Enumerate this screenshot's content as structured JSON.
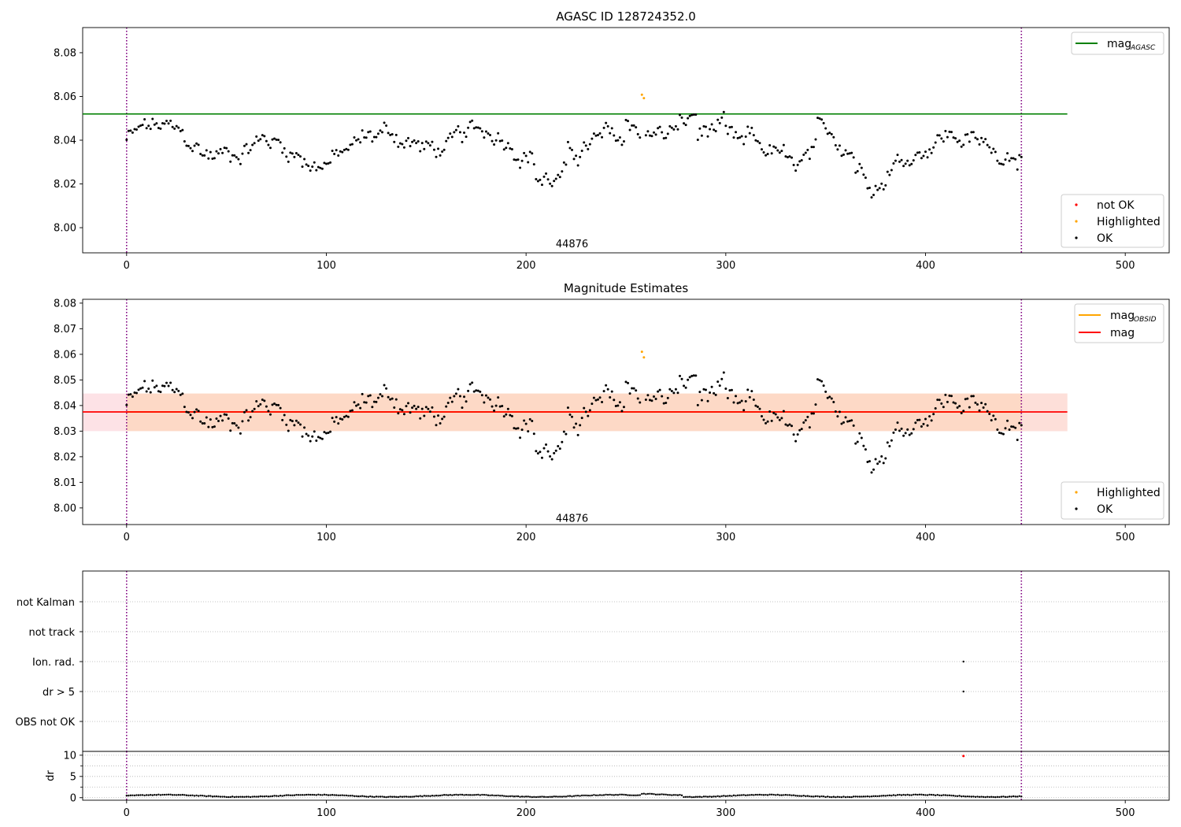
{
  "chart_data": [
    {
      "type": "scatter",
      "title": "AGASC ID 128724352.0",
      "xlim": [
        -22,
        522
      ],
      "ylim": [
        7.9885,
        8.0915
      ],
      "x_ticks": [
        0,
        100,
        200,
        300,
        400,
        500
      ],
      "y_ticks": [
        8.0,
        8.02,
        8.04,
        8.06,
        8.08
      ],
      "y_tick_format": 2,
      "vlines": [
        0,
        448
      ],
      "hline": {
        "name": "mag",
        "name_sub": "AGASC",
        "value": 8.052,
        "x_range": [
          -22,
          471
        ],
        "color": "#008000"
      },
      "annotation": "44876",
      "annotation_at": [
        223,
        7.9925
      ],
      "legend_lines": [
        {
          "label": "mag",
          "sub": "AGASC",
          "color": "#008000"
        }
      ],
      "legend_points": [
        {
          "label": "not OK",
          "color": "#ff0000"
        },
        {
          "label": "Highlighted",
          "color": "#ffa500"
        },
        {
          "label": "OK",
          "color": "#000000"
        }
      ],
      "highlighted": [
        {
          "x": 258,
          "y": 8.0608
        },
        {
          "x": 259,
          "y": 8.0592
        }
      ],
      "ok_points_note": "449 points, x from 0 to 448"
    },
    {
      "type": "scatter",
      "title": "Magnitude Estimates",
      "xlim": [
        -22,
        522
      ],
      "ylim": [
        7.9935,
        8.0815
      ],
      "x_ticks": [
        0,
        100,
        200,
        300,
        400,
        500
      ],
      "y_ticks": [
        8.0,
        8.01,
        8.02,
        8.03,
        8.04,
        8.05,
        8.06,
        8.07,
        8.08
      ],
      "y_tick_format": 2,
      "vlines": [
        0,
        448
      ],
      "band": {
        "y0": 8.03,
        "y1": 8.0447,
        "x_range": [
          -22,
          471
        ],
        "pink_x_range": [
          -22,
          0
        ],
        "inner_color": "#fdd9c6",
        "outer_color": "#fde2e6"
      },
      "mag_obsid": {
        "name": "mag",
        "name_sub": "OBSID",
        "value": 8.0375,
        "x_range": [
          0,
          448
        ],
        "color": "#ffa500"
      },
      "mag": {
        "name": "mag",
        "value": 8.0375,
        "x_range": [
          -22,
          471
        ],
        "color": "#ff0000"
      },
      "annotation": "44876",
      "annotation_at": [
        223,
        7.9958
      ],
      "legend_lines": [
        {
          "label": "mag",
          "sub": "OBSID",
          "color": "#ffa500"
        },
        {
          "label": "mag",
          "sub": "",
          "color": "#ff0000"
        }
      ],
      "legend_points": [
        {
          "label": "Highlighted",
          "color": "#ffa500"
        },
        {
          "label": "OK",
          "color": "#000000"
        }
      ],
      "highlighted": [
        {
          "x": 258,
          "y": 8.061
        },
        {
          "x": 259,
          "y": 8.0588
        }
      ]
    },
    {
      "type": "scatter",
      "title": "",
      "xlim": [
        -22,
        522
      ],
      "categories": [
        "not Kalman",
        "not track",
        "Ion. rad.",
        "dr > 5",
        "OBS not OK"
      ],
      "vlines": [
        0,
        448
      ],
      "flag_points": [
        {
          "category": "Ion. rad.",
          "x": 419
        },
        {
          "category": "dr > 5",
          "x": 419
        }
      ]
    },
    {
      "type": "scatter",
      "title": "",
      "xlim": [
        -22,
        522
      ],
      "ylim": [
        -0.6,
        10.9
      ],
      "ylabel": "dr",
      "x_ticks": [
        0,
        100,
        200,
        300,
        400,
        500
      ],
      "y_ticks": [
        0,
        5,
        10
      ],
      "vlines": [
        0,
        448
      ],
      "not_ok_points": [
        {
          "x": 419,
          "y": 9.8
        }
      ],
      "ok_level_note": "dr values between 0 and 1.2 for x 0 to 448"
    }
  ]
}
